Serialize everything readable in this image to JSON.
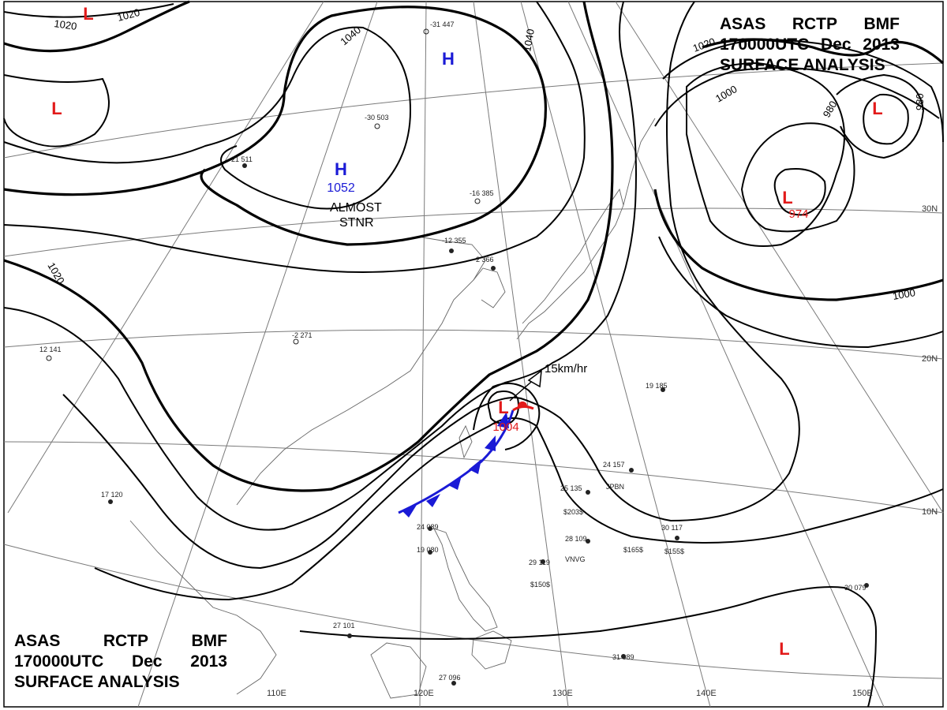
{
  "title_block": {
    "line1": [
      "ASAS",
      "RCTP",
      "BMF"
    ],
    "line2": [
      "170000UTC",
      "Dec",
      "2013"
    ],
    "line3": "SURFACE ANALYSIS"
  },
  "isobars": {
    "labels": [
      "1020",
      "1020",
      "1040",
      "1040",
      "1020",
      "1020",
      "1000",
      "980",
      "980",
      "1000"
    ]
  },
  "pressure_centers": [
    {
      "type": "H",
      "value": "",
      "color": "#1a1ad6"
    },
    {
      "type": "H",
      "value": "1052",
      "color": "#1a1ad6"
    },
    {
      "type": "L",
      "value": "",
      "color": "#e21a1a"
    },
    {
      "type": "L",
      "value": "",
      "color": "#e21a1a"
    },
    {
      "type": "L",
      "value": "974",
      "color": "#e21a1a"
    },
    {
      "type": "L",
      "value": "1004",
      "color": "#e21a1a"
    },
    {
      "type": "L",
      "value": "",
      "color": "#e21a1a"
    }
  ],
  "annotations": {
    "stationary_line1": "ALMOST",
    "stationary_line2": "STNR",
    "motion": "15km/hr"
  },
  "longitude_labels": [
    "110E",
    "120E",
    "130E",
    "140E",
    "150E"
  ],
  "latitude_labels": [
    "30N",
    "20N",
    "10N"
  ],
  "station_labels": [
    "JPBN",
    "VNVG",
    "$203$",
    "$165$",
    "$155$",
    "$150$"
  ],
  "station_values": [
    "-31 447",
    "-30 503",
    "-21 511",
    "-16 385",
    "-12 355",
    "-2 366",
    "-2 271",
    "12 141",
    "17 120",
    "24 089",
    "19 080",
    "29 119",
    "25 135",
    "28 109",
    "30 117",
    "30 079",
    "31 089",
    "27 101",
    "27 096",
    "24 157",
    "19 185"
  ],
  "colors": {
    "isobar": "#000000",
    "high": "#1a1ad6",
    "low": "#e21a1a",
    "cold_front": "#1a1ad6",
    "warm_front": "#e21a1a",
    "grid": "#7a7a7a",
    "coast": "#666666"
  }
}
